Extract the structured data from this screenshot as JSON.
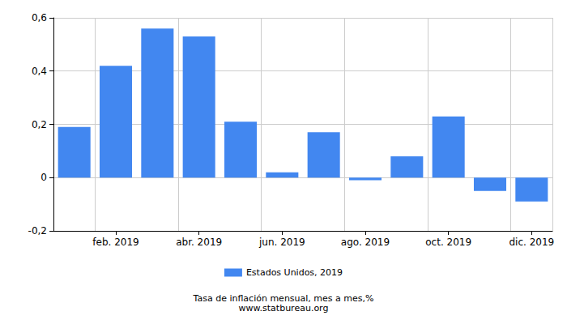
{
  "chart_data": {
    "type": "bar",
    "title": "Tasa de inflación mensual, mes a mes,%",
    "subtitle": "www.statbureau.org",
    "categories": [
      null,
      "feb. 2019",
      null,
      "abr. 2019",
      null,
      "jun. 2019",
      null,
      "ago. 2019",
      null,
      "oct. 2019",
      null,
      "dic. 2019"
    ],
    "series": [
      {
        "name": "Estados Unidos, 2019",
        "color": "#4287f0",
        "values": [
          0.19,
          0.42,
          0.56,
          0.53,
          0.21,
          0.02,
          0.17,
          -0.01,
          0.08,
          0.23,
          -0.05,
          -0.09
        ]
      }
    ],
    "ylim": [
      -0.2,
      0.6
    ],
    "yticks": [
      {
        "value": -0.2,
        "label": "-0,2"
      },
      0,
      {
        "value": 0.2,
        "label": "0,2"
      },
      {
        "value": 0.4,
        "label": "0,4"
      },
      {
        "value": 0.6,
        "label": "0,6"
      }
    ],
    "grid": true,
    "legend": "bottom"
  }
}
